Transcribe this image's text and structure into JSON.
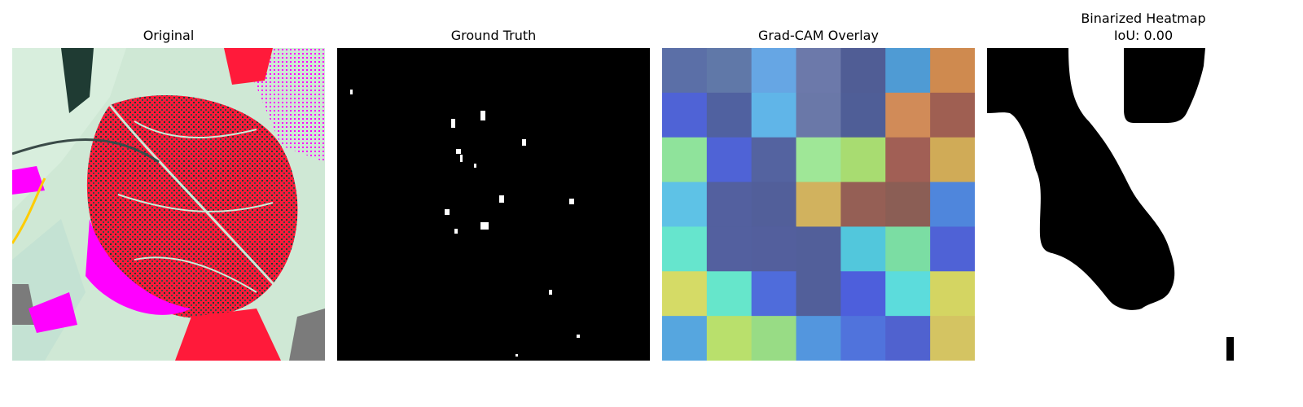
{
  "panels": {
    "original": {
      "title": "Original"
    },
    "ground_truth": {
      "title": "Ground Truth"
    },
    "gradcam": {
      "title": "Grad-CAM Overlay"
    },
    "binarized": {
      "title": "Binarized Heatmap",
      "subtitle": "IoU: 0.00"
    }
  },
  "gradcam_grid": {
    "rows": 7,
    "cols": 7,
    "colors": [
      [
        "#5b6fa7",
        "#6078a8",
        "#66a6e4",
        "#6c79aa",
        "#505d95",
        "#4f9bd4",
        "#cf8a4f"
      ],
      [
        "#4f63d6",
        "#5061a0",
        "#60b5e8",
        "#6a78a8",
        "#4f5e97",
        "#d18b58",
        "#9f5f52"
      ],
      [
        "#8fe39b",
        "#4f63d6",
        "#5463a0",
        "#9fe797",
        "#a8dc71",
        "#a15f55",
        "#d0ab57"
      ],
      [
        "#5ec2e6",
        "#53609f",
        "#525f9a",
        "#d1b25e",
        "#955f55",
        "#8b5e55",
        "#4f86dc"
      ],
      [
        "#66e5cd",
        "#53609f",
        "#535f9d",
        "#525f9a",
        "#52c7dc",
        "#7bdda3",
        "#4f62d6"
      ],
      [
        "#d5db66",
        "#66e6cb",
        "#4f6cdb",
        "#525f9a",
        "#4d5fdc",
        "#5cdcdc",
        "#d4d562"
      ],
      [
        "#56a6df",
        "#b9e06c",
        "#98dc85",
        "#5396de",
        "#5073dc",
        "#5062cf",
        "#d4c462"
      ]
    ]
  },
  "colors": {
    "background": "#ffffff",
    "mask_bg": "#000000",
    "mask_fg": "#ffffff",
    "leaf_red": "#ff1a3a",
    "leaf_magenta": "#ff00ff",
    "leaf_pale": "#cfe8d5",
    "leaf_dark": "#1f3b33"
  }
}
